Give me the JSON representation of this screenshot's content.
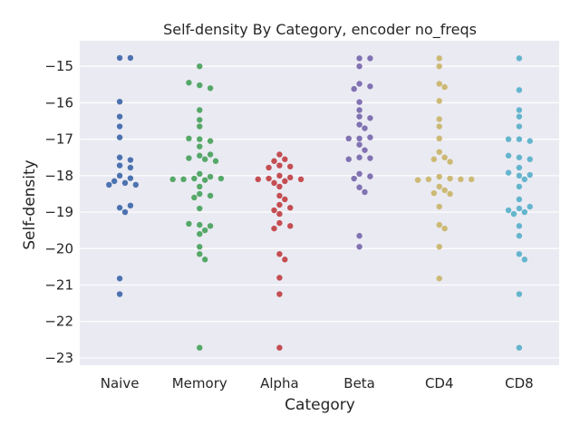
{
  "chart_data": {
    "type": "scatter",
    "subtype": "swarm",
    "title": "Self-density By Category, encoder no_freqs",
    "xlabel": "Category",
    "ylabel": "Self-density",
    "ylim": [
      -23.2,
      -14.3
    ],
    "yticks": [
      -15,
      -16,
      -17,
      -18,
      -19,
      -20,
      -21,
      -22,
      -23
    ],
    "ytick_labels": [
      "−15",
      "−16",
      "−17",
      "−18",
      "−19",
      "−20",
      "−21",
      "−22",
      "−23"
    ],
    "grid": true,
    "categories": [
      "Naive",
      "Memory",
      "Alpha",
      "Beta",
      "CD4",
      "CD8"
    ],
    "colors": [
      "#4c72b0",
      "#55a868",
      "#c44e52",
      "#8172b2",
      "#ccb974",
      "#64b5cd"
    ],
    "background": "#eaeaf2",
    "series": [
      {
        "category": "Naive",
        "values": [
          -14.77,
          -14.77,
          -15.97,
          -16.38,
          -16.65,
          -16.95,
          -17.5,
          -17.57,
          -17.72,
          -17.78,
          -18.0,
          -18.07,
          -18.15,
          -18.2,
          -18.25,
          -18.25,
          -18.88,
          -18.82,
          -19.0,
          -20.82,
          -21.25
        ]
      },
      {
        "category": "Memory",
        "values": [
          -15.0,
          -15.52,
          -15.6,
          -15.45,
          -16.2,
          -16.47,
          -16.65,
          -17.0,
          -17.05,
          -16.98,
          -17.2,
          -17.45,
          -17.42,
          -17.52,
          -17.55,
          -17.6,
          -17.95,
          -18.03,
          -18.08,
          -18.1,
          -18.12,
          -18.08,
          -18.1,
          -18.3,
          -18.5,
          -18.55,
          -18.6,
          -18.9,
          -19.35,
          -19.38,
          -19.32,
          -19.5,
          -19.6,
          -19.95,
          -20.15,
          -20.3,
          -22.72
        ]
      },
      {
        "category": "Alpha",
        "values": [
          -17.42,
          -17.55,
          -17.6,
          -17.72,
          -17.75,
          -17.78,
          -18.0,
          -18.05,
          -18.08,
          -18.1,
          -18.1,
          -18.15,
          -18.2,
          -18.3,
          -18.55,
          -18.65,
          -18.8,
          -18.88,
          -18.95,
          -19.05,
          -19.3,
          -19.38,
          -19.45,
          -20.15,
          -20.3,
          -20.8,
          -21.25,
          -22.72
        ]
      },
      {
        "category": "Beta",
        "values": [
          -14.78,
          -14.78,
          -15.0,
          -15.48,
          -15.55,
          -15.62,
          -15.98,
          -16.2,
          -16.38,
          -16.42,
          -16.6,
          -16.7,
          -16.98,
          -16.95,
          -16.98,
          -17.15,
          -17.3,
          -17.5,
          -17.52,
          -17.55,
          -17.95,
          -18.02,
          -18.08,
          -18.32,
          -18.45,
          -19.65,
          -19.95
        ]
      },
      {
        "category": "CD4",
        "values": [
          -14.78,
          -15.0,
          -15.48,
          -15.57,
          -15.95,
          -16.45,
          -16.65,
          -16.98,
          -17.35,
          -17.5,
          -17.55,
          -17.62,
          -18.03,
          -18.08,
          -18.1,
          -18.1,
          -18.12,
          -18.1,
          -18.3,
          -18.4,
          -18.48,
          -18.5,
          -18.85,
          -19.35,
          -19.45,
          -19.95,
          -20.82
        ]
      },
      {
        "category": "CD8",
        "values": [
          -14.78,
          -15.65,
          -16.2,
          -16.38,
          -16.65,
          -17.0,
          -17.05,
          -17.0,
          -17.5,
          -17.55,
          -17.45,
          -17.78,
          -18.0,
          -17.98,
          -17.92,
          -18.1,
          -18.3,
          -18.65,
          -18.9,
          -18.85,
          -19.0,
          -18.95,
          -19.05,
          -19.38,
          -19.65,
          -20.15,
          -20.3,
          -21.25,
          -22.72
        ]
      }
    ]
  }
}
